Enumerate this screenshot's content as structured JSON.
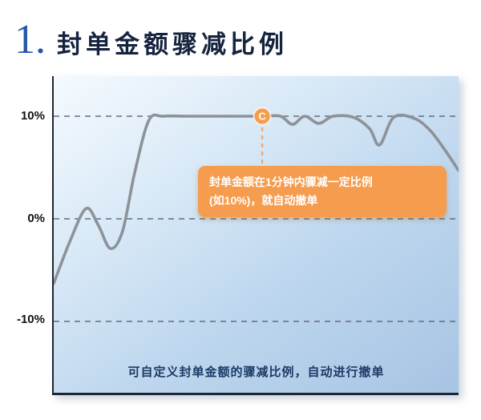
{
  "header": {
    "number": "1.",
    "title": "封单金额骤减比例"
  },
  "callout": {
    "marker_label": "C",
    "line1": "封单金额在1分钟内骤减一定比例",
    "line2": "(如10%)，就自动撤单"
  },
  "footer": {
    "note": "可自定义封单金额的骤减比例，自动进行撤单"
  },
  "colors": {
    "accent_orange": "#F59C4E",
    "title_blue": "#2357A7",
    "heading_navy": "#15233F",
    "curve_gray": "#8D9298",
    "grid_gray": "#5A616B",
    "footer_navy": "#1C3A66"
  },
  "chart_data": {
    "type": "line",
    "title": "封单金额骤减比例",
    "yticks": [
      "10%",
      "0%",
      "-10%"
    ],
    "ytick_values": [
      10,
      0,
      -10
    ],
    "ylim": [
      -17,
      14
    ],
    "xlabel": "",
    "ylabel": "",
    "grid": "horizontal-dashed",
    "legend": "none",
    "series": [
      {
        "name": "封单金额",
        "points": [
          [
            0,
            -6.3
          ],
          [
            4,
            -2.2
          ],
          [
            8,
            1.0
          ],
          [
            11,
            -0.6
          ],
          [
            14,
            -2.9
          ],
          [
            17,
            -1.2
          ],
          [
            20,
            4.5
          ],
          [
            23.5,
            9.6
          ],
          [
            27,
            10
          ],
          [
            33,
            10
          ],
          [
            40,
            10
          ],
          [
            46,
            10
          ],
          [
            51.5,
            10
          ],
          [
            56,
            10
          ],
          [
            59,
            9.2
          ],
          [
            62,
            10
          ],
          [
            65.5,
            9.3
          ],
          [
            69,
            10
          ],
          [
            74,
            9.9
          ],
          [
            78,
            8.8
          ],
          [
            80.5,
            7.2
          ],
          [
            84,
            9.9
          ],
          [
            89,
            9.8
          ],
          [
            93,
            8.6
          ],
          [
            97,
            6.5
          ],
          [
            100,
            4.7
          ]
        ]
      }
    ],
    "annotation": {
      "label": "C",
      "x": 51.5,
      "y": 10,
      "note": "封单金额在1分钟内骤减一定比例(如10%)，就自动撤单"
    }
  }
}
